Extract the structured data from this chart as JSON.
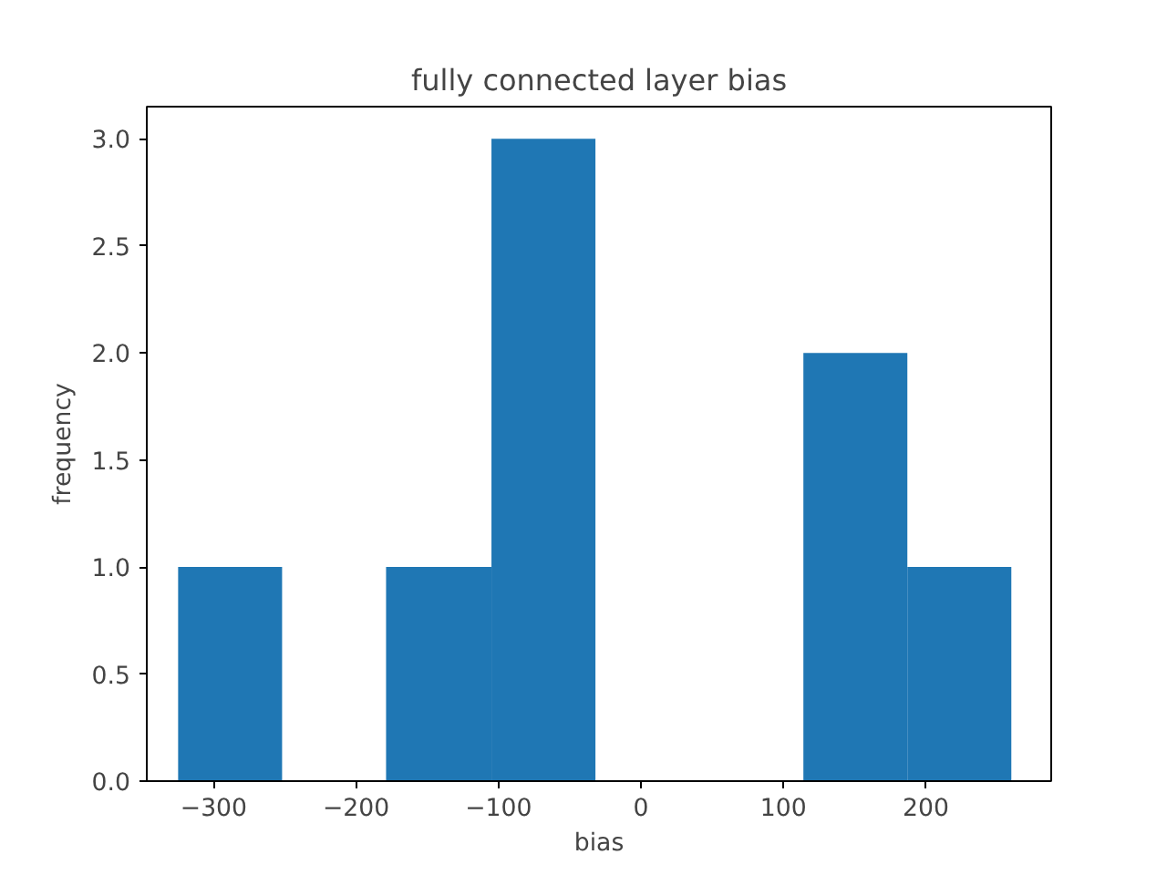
{
  "chart_data": {
    "type": "histogram",
    "title": "fully connected layer bias",
    "xlabel": "bias",
    "ylabel": "frequency",
    "bins": [
      -325,
      -252,
      -179,
      -105,
      -32,
      114,
      187,
      260
    ],
    "values": [
      1,
      0,
      1,
      3,
      0,
      2,
      1
    ],
    "color": "#1f77b4",
    "xlim": [
      -347,
      288
    ],
    "ylim": [
      0,
      3.15
    ],
    "xticks": [
      {
        "value": -300,
        "label": "−300"
      },
      {
        "value": -200,
        "label": "−200"
      },
      {
        "value": -100,
        "label": "−100"
      },
      0,
      100,
      200
    ],
    "yticks": [
      {
        "value": 0,
        "label": "0.0"
      },
      {
        "value": 0.5,
        "label": "0.5"
      },
      {
        "value": 1,
        "label": "1.0"
      },
      {
        "value": 1.5,
        "label": "1.5"
      },
      {
        "value": 2,
        "label": "2.0"
      },
      {
        "value": 2.5,
        "label": "2.5"
      },
      {
        "value": 3,
        "label": "3.0"
      }
    ],
    "grid": false
  }
}
